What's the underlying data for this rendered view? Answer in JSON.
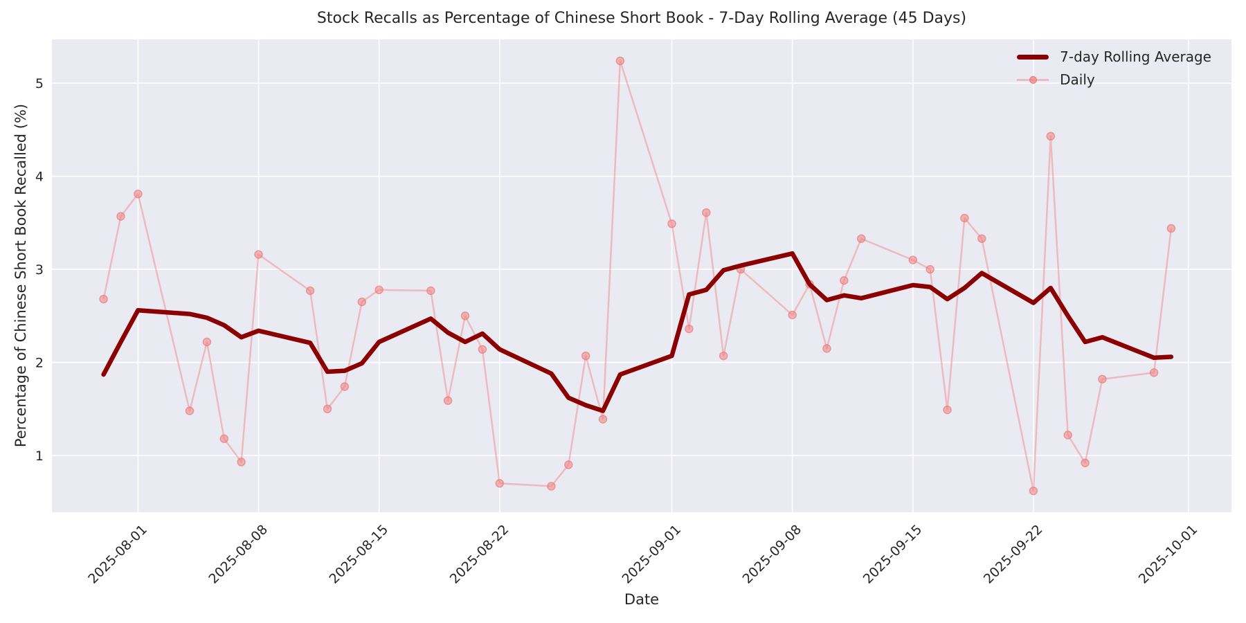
{
  "figure": {
    "title": "Stock Recalls as Percentage of Chinese Short Book - 7-Day Rolling Average (45 Days)",
    "xlabel": "Date",
    "ylabel": "Percentage of Chinese Short Book Recalled (%)"
  },
  "legend": {
    "position": "upper-right",
    "entries": [
      {
        "label": "7-day Rolling Average",
        "color": "#8b0000",
        "style": "thick-line"
      },
      {
        "label": "Daily",
        "color": "#f08080",
        "style": "thin-line-with-marker"
      }
    ]
  },
  "chart_data": {
    "type": "line",
    "title": "Stock Recalls as Percentage of Chinese Short Book - 7-Day Rolling Average (45 Days)",
    "xlabel": "Date",
    "ylabel": "Percentage of Chinese Short Book Recalled (%)",
    "grid": true,
    "plot_bg": "#eaeaf2",
    "grid_color": "#ffffff",
    "text_color": "#262626",
    "ylim": [
      0.39,
      5.47
    ],
    "xlim": [
      "2025-07-27T00:00",
      "2025-10-03T12:00"
    ],
    "y_ticks": [
      1,
      2,
      3,
      4,
      5
    ],
    "x_ticks": [
      "2025-08-01",
      "2025-08-08",
      "2025-08-15",
      "2025-08-22",
      "2025-09-01",
      "2025-09-08",
      "2025-09-15",
      "2025-09-22",
      "2025-10-01"
    ],
    "x": [
      "2025-07-30",
      "2025-07-31",
      "2025-08-01",
      "2025-08-04",
      "2025-08-05",
      "2025-08-06",
      "2025-08-07",
      "2025-08-08",
      "2025-08-11",
      "2025-08-12",
      "2025-08-13",
      "2025-08-14",
      "2025-08-15",
      "2025-08-18",
      "2025-08-19",
      "2025-08-20",
      "2025-08-21",
      "2025-08-22",
      "2025-08-25",
      "2025-08-26",
      "2025-08-27",
      "2025-08-28",
      "2025-08-29",
      "2025-09-01",
      "2025-09-02",
      "2025-09-03",
      "2025-09-04",
      "2025-09-05",
      "2025-09-08",
      "2025-09-09",
      "2025-09-10",
      "2025-09-11",
      "2025-09-12",
      "2025-09-15",
      "2025-09-16",
      "2025-09-17",
      "2025-09-18",
      "2025-09-19",
      "2025-09-22",
      "2025-09-23",
      "2025-09-24",
      "2025-09-25",
      "2025-09-26",
      "2025-09-29",
      "2025-09-30"
    ],
    "series": [
      {
        "name": "7-day Rolling Average",
        "color": "#8b0000",
        "linewidth": 6.5,
        "opacity": 1.0,
        "marker": "none",
        "values": [
          1.87,
          2.22,
          2.56,
          2.52,
          2.48,
          2.4,
          2.27,
          2.34,
          2.21,
          1.9,
          1.91,
          1.99,
          2.22,
          2.47,
          2.32,
          2.22,
          2.31,
          2.14,
          1.88,
          1.62,
          1.54,
          1.48,
          1.87,
          2.07,
          2.73,
          2.78,
          2.99,
          3.04,
          3.17,
          2.84,
          2.67,
          2.72,
          2.69,
          2.83,
          2.81,
          2.68,
          2.8,
          2.96,
          2.64,
          2.8,
          2.5,
          2.22,
          2.27,
          2.05,
          2.06
        ]
      },
      {
        "name": "Daily",
        "color": "#f08080",
        "linewidth": 2.5,
        "opacity": 0.45,
        "marker": "o",
        "values": [
          2.68,
          3.57,
          3.81,
          1.48,
          2.22,
          1.18,
          0.93,
          3.16,
          2.77,
          1.5,
          1.74,
          2.65,
          2.78,
          2.77,
          1.59,
          2.5,
          2.14,
          0.7,
          0.67,
          0.9,
          2.07,
          1.39,
          5.24,
          3.49,
          2.36,
          3.61,
          2.07,
          3.0,
          2.51,
          2.84,
          2.15,
          2.88,
          3.33,
          3.1,
          3.0,
          1.49,
          3.55,
          3.33,
          0.62,
          4.43,
          1.22,
          0.92,
          1.82,
          1.89,
          3.44
        ]
      }
    ]
  }
}
